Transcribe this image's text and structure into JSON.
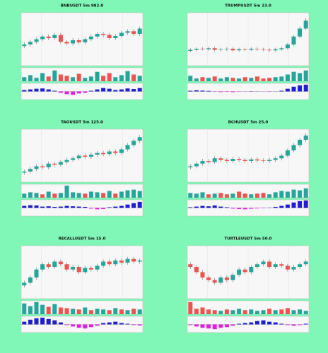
{
  "chart_data": [
    {
      "type": "candlestick",
      "title": "BNBUSDT 5m 982.0",
      "ylim": [
        0,
        100
      ],
      "volume_ylim": [
        0,
        100
      ],
      "macd_ylim": [
        -60,
        60
      ],
      "up_color": "#26a69a",
      "down_color": "#ef5350",
      "macd_up_color": "#1f1fd0",
      "macd_down_color": "#e020e0",
      "grid": true,
      "open": [
        37,
        40,
        45,
        50,
        55,
        52,
        58,
        45,
        42,
        48,
        44,
        50,
        55,
        60,
        58,
        52,
        56,
        62,
        65,
        60
      ],
      "high": [
        44,
        49,
        54,
        59,
        59,
        62,
        62,
        49,
        52,
        52,
        54,
        59,
        64,
        64,
        62,
        60,
        66,
        69,
        69,
        74
      ],
      "low": [
        33,
        36,
        41,
        46,
        48,
        48,
        41,
        38,
        38,
        40,
        40,
        46,
        51,
        54,
        48,
        48,
        52,
        58,
        56,
        56
      ],
      "close": [
        40,
        45,
        50,
        55,
        52,
        58,
        45,
        42,
        48,
        44,
        50,
        55,
        60,
        58,
        52,
        56,
        62,
        65,
        60,
        70
      ],
      "volume": [
        30,
        45,
        25,
        60,
        35,
        80,
        50,
        40,
        30,
        55,
        25,
        35,
        70,
        40,
        60,
        30,
        45,
        75,
        50,
        40
      ],
      "macd": [
        10,
        15,
        20,
        22,
        15,
        5,
        -10,
        -20,
        -25,
        -15,
        -10,
        5,
        15,
        25,
        20,
        10,
        15,
        22,
        18,
        25
      ]
    },
    {
      "type": "candlestick",
      "title": "TRUMPUSDT 5m 23.0",
      "ylim": [
        0,
        100
      ],
      "volume_ylim": [
        0,
        100
      ],
      "macd_ylim": [
        -60,
        60
      ],
      "up_color": "#26a69a",
      "down_color": "#ef5350",
      "macd_up_color": "#1f1fd0",
      "macd_down_color": "#e020e0",
      "grid": true,
      "open": [
        28,
        30,
        32,
        31,
        33,
        30,
        31,
        32,
        29,
        31,
        30,
        32,
        31,
        30,
        29,
        31,
        33,
        40,
        55,
        70
      ],
      "high": [
        33,
        35,
        35,
        36,
        36,
        34,
        35,
        35,
        34,
        34,
        35,
        35,
        34,
        33,
        34,
        36,
        43,
        58,
        74,
        90
      ],
      "low": [
        25,
        27,
        29,
        28,
        27,
        27,
        28,
        26,
        26,
        27,
        27,
        28,
        27,
        26,
        26,
        28,
        30,
        37,
        52,
        67
      ],
      "close": [
        30,
        32,
        31,
        33,
        30,
        31,
        32,
        29,
        31,
        30,
        32,
        31,
        30,
        29,
        31,
        33,
        40,
        55,
        70,
        85
      ],
      "volume": [
        40,
        20,
        30,
        25,
        35,
        20,
        30,
        25,
        20,
        30,
        25,
        35,
        20,
        25,
        30,
        35,
        50,
        70,
        60,
        80
      ],
      "macd": [
        5,
        8,
        6,
        4,
        -2,
        -4,
        -3,
        -5,
        -2,
        -1,
        2,
        1,
        -1,
        -2,
        1,
        5,
        20,
        35,
        45,
        50
      ]
    },
    {
      "type": "candlestick",
      "title": "TAOUSDT 5m 125.0",
      "ylim": [
        0,
        100
      ],
      "volume_ylim": [
        0,
        100
      ],
      "macd_ylim": [
        -60,
        60
      ],
      "up_color": "#26a69a",
      "down_color": "#ef5350",
      "macd_up_color": "#1f1fd0",
      "macd_down_color": "#e020e0",
      "grid": true,
      "open": [
        18,
        20,
        25,
        30,
        28,
        35,
        33,
        38,
        42,
        45,
        50,
        48,
        52,
        55,
        53,
        58,
        55,
        62,
        70,
        78
      ],
      "high": [
        24,
        29,
        34,
        34,
        39,
        39,
        42,
        46,
        49,
        54,
        54,
        56,
        59,
        59,
        62,
        62,
        66,
        74,
        82,
        89
      ],
      "low": [
        14,
        16,
        21,
        24,
        24,
        29,
        29,
        34,
        38,
        41,
        44,
        44,
        48,
        49,
        49,
        51,
        51,
        58,
        66,
        74
      ],
      "close": [
        20,
        25,
        30,
        28,
        35,
        33,
        38,
        42,
        45,
        50,
        48,
        52,
        55,
        53,
        58,
        55,
        62,
        70,
        78,
        85
      ],
      "volume": [
        30,
        40,
        35,
        25,
        45,
        30,
        35,
        90,
        40,
        35,
        30,
        45,
        40,
        35,
        50,
        30,
        45,
        55,
        60,
        50
      ],
      "macd": [
        15,
        20,
        18,
        10,
        12,
        8,
        10,
        15,
        12,
        10,
        8,
        -5,
        -10,
        -8,
        5,
        10,
        15,
        25,
        35,
        45
      ]
    },
    {
      "type": "candlestick",
      "title": "BCHUSDT 5m 25.0",
      "ylim": [
        0,
        100
      ],
      "volume_ylim": [
        0,
        100
      ],
      "macd_ylim": [
        -60,
        60
      ],
      "up_color": "#26a69a",
      "down_color": "#ef5350",
      "macd_up_color": "#1f1fd0",
      "macd_down_color": "#e020e0",
      "grid": true,
      "open": [
        28,
        30,
        35,
        40,
        38,
        45,
        42,
        40,
        44,
        42,
        40,
        43,
        41,
        40,
        42,
        45,
        50,
        60,
        70,
        80
      ],
      "high": [
        34,
        39,
        44,
        44,
        49,
        49,
        46,
        48,
        48,
        46,
        47,
        47,
        45,
        46,
        49,
        54,
        64,
        74,
        84,
        92
      ],
      "low": [
        24,
        26,
        31,
        34,
        34,
        38,
        36,
        36,
        38,
        36,
        36,
        37,
        36,
        36,
        38,
        41,
        46,
        56,
        66,
        76
      ],
      "close": [
        30,
        35,
        40,
        38,
        45,
        42,
        40,
        44,
        42,
        40,
        43,
        41,
        40,
        42,
        45,
        50,
        60,
        70,
        80,
        88
      ],
      "volume": [
        35,
        30,
        40,
        25,
        30,
        35,
        25,
        30,
        45,
        30,
        25,
        30,
        35,
        25,
        40,
        50,
        45,
        60,
        55,
        70
      ],
      "macd": [
        5,
        10,
        15,
        12,
        18,
        10,
        5,
        -5,
        -8,
        -10,
        -6,
        -4,
        -3,
        2,
        8,
        15,
        25,
        40,
        50,
        55
      ]
    },
    {
      "type": "candlestick",
      "title": "RECALLUSDT 5m 15.0",
      "ylim": [
        0,
        100
      ],
      "volume_ylim": [
        0,
        100
      ],
      "macd_ylim": [
        -60,
        60
      ],
      "up_color": "#26a69a",
      "down_color": "#ef5350",
      "macd_up_color": "#1f1fd0",
      "macd_down_color": "#e020e0",
      "grid": true,
      "open": [
        25,
        30,
        40,
        55,
        65,
        60,
        70,
        65,
        55,
        60,
        50,
        58,
        55,
        62,
        70,
        65,
        72,
        68,
        75,
        70
      ],
      "high": [
        34,
        44,
        59,
        69,
        69,
        74,
        74,
        69,
        64,
        64,
        62,
        62,
        66,
        74,
        74,
        76,
        76,
        79,
        79,
        76
      ],
      "low": [
        21,
        26,
        36,
        51,
        56,
        56,
        61,
        51,
        51,
        46,
        46,
        51,
        51,
        58,
        61,
        61,
        64,
        64,
        66,
        66
      ],
      "close": [
        30,
        40,
        55,
        65,
        60,
        70,
        65,
        55,
        60,
        50,
        58,
        55,
        62,
        70,
        65,
        72,
        68,
        75,
        70,
        72
      ],
      "volume": [
        80,
        60,
        90,
        70,
        55,
        75,
        50,
        45,
        40,
        35,
        50,
        30,
        40,
        35,
        30,
        45,
        35,
        30,
        40,
        35
      ],
      "macd": [
        20,
        35,
        45,
        50,
        40,
        30,
        15,
        -5,
        -15,
        -25,
        -30,
        -20,
        -10,
        10,
        15,
        20,
        10,
        5,
        -5,
        -8
      ]
    },
    {
      "type": "candlestick",
      "title": "TURTLEUSDT 5m 50.0",
      "ylim": [
        0,
        100
      ],
      "volume_ylim": [
        0,
        100
      ],
      "macd_ylim": [
        -60,
        60
      ],
      "up_color": "#26a69a",
      "down_color": "#ef5350",
      "macd_up_color": "#1f1fd0",
      "macd_down_color": "#e020e0",
      "grid": true,
      "open": [
        65,
        60,
        50,
        40,
        35,
        30,
        40,
        35,
        45,
        55,
        50,
        60,
        65,
        70,
        60,
        65,
        62,
        55,
        60,
        65
      ],
      "high": [
        69,
        64,
        54,
        44,
        39,
        44,
        44,
        49,
        59,
        59,
        64,
        69,
        74,
        74,
        69,
        69,
        66,
        64,
        69,
        74
      ],
      "low": [
        56,
        46,
        36,
        31,
        26,
        26,
        31,
        31,
        41,
        46,
        46,
        56,
        61,
        56,
        56,
        58,
        51,
        51,
        56,
        61
      ],
      "close": [
        60,
        50,
        40,
        35,
        30,
        40,
        35,
        45,
        55,
        50,
        60,
        65,
        70,
        60,
        65,
        62,
        55,
        60,
        65,
        70
      ],
      "volume": [
        90,
        40,
        50,
        35,
        30,
        25,
        35,
        30,
        40,
        30,
        35,
        25,
        30,
        40,
        30,
        35,
        45,
        30,
        35,
        25
      ],
      "macd": [
        -5,
        -15,
        -25,
        -30,
        -35,
        -25,
        -20,
        -10,
        5,
        10,
        15,
        25,
        30,
        20,
        15,
        5,
        -5,
        -10,
        -5,
        5
      ]
    }
  ]
}
